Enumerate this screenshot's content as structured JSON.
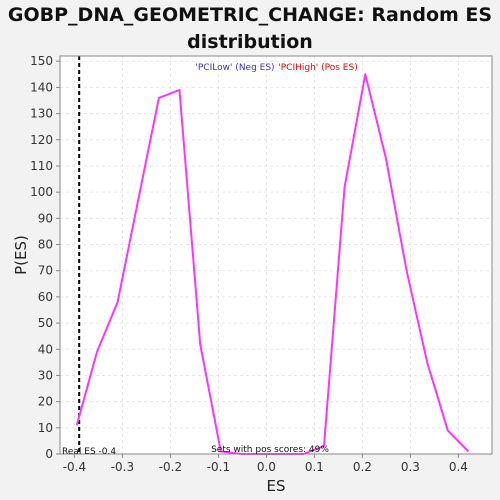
{
  "chart_data": {
    "type": "line",
    "title_line1": "GOBP_DNA_GEOMETRIC_CHANGE: Random ES",
    "title_line2": "distribution",
    "xlabel": "ES",
    "ylabel": "P(ES)",
    "xlim": [
      -0.43,
      0.47
    ],
    "ylim": [
      0,
      152
    ],
    "xticks": [
      -0.4,
      -0.3,
      -0.2,
      -0.1,
      0.0,
      0.1,
      0.2,
      0.3,
      0.4
    ],
    "xtick_labels": [
      "-0.4",
      "-0.3",
      "-0.2",
      "-0.1",
      "0.0",
      "0.1",
      "0.2",
      "0.3",
      "0.4"
    ],
    "yticks": [
      0,
      10,
      20,
      30,
      40,
      50,
      60,
      70,
      80,
      90,
      100,
      110,
      120,
      130,
      140,
      150
    ],
    "ytick_labels": [
      "0",
      "10",
      "20",
      "30",
      "40",
      "50",
      "60",
      "70",
      "80",
      "90",
      "100",
      "110",
      "120",
      "130",
      "140",
      "150"
    ],
    "grid": true,
    "series": [
      {
        "color": "#ff33ff",
        "x": [
          -0.395,
          -0.353,
          -0.31,
          -0.267,
          -0.224,
          -0.181,
          -0.138,
          -0.095,
          -0.052,
          -0.009,
          0.034,
          0.077,
          0.12,
          0.163,
          0.206,
          0.249,
          0.292,
          0.335,
          0.378,
          0.421
        ],
        "y": [
          11,
          39,
          58,
          97,
          136,
          139,
          42,
          1,
          0,
          0,
          0,
          0,
          3,
          102,
          145,
          113,
          70,
          35,
          9,
          1
        ]
      }
    ],
    "real_es": -0.39,
    "legend": {
      "neg_label": "'PCILow' (Neg ES)",
      "pos_label": "'PCIHigh' (Pos ES)",
      "neg_color": "#3333cc",
      "pos_color": "#ff0000"
    },
    "annotations": {
      "real_es_text": "Real ES -0.4",
      "pos_scores_text": "Sets with pos scores: 49%"
    }
  }
}
